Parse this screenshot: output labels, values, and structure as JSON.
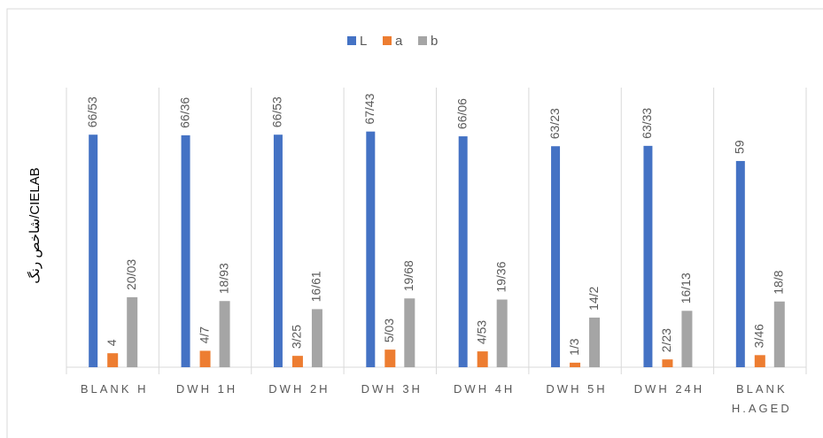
{
  "chart_data": {
    "type": "bar",
    "y_label": "شاخص رنگ/CIELAB",
    "categories": [
      "BLANK H",
      "DWH 1H",
      "DWH 2H",
      "DWH 3H",
      "DWH 4H",
      "DWH 5H",
      "DWH 24H",
      "BLANK H.AGED"
    ],
    "series": [
      {
        "name": "L",
        "color": "#4472c4",
        "values": [
          66.53,
          66.36,
          66.53,
          67.43,
          66.06,
          63.23,
          63.33,
          59
        ],
        "value_labels": [
          "66/53",
          "66/36",
          "66/53",
          "67/43",
          "66/06",
          "63/23",
          "63/33",
          "59"
        ]
      },
      {
        "name": "a",
        "color": "#ed7d31",
        "values": [
          4,
          4.7,
          3.25,
          5.03,
          4.53,
          1.3,
          2.23,
          3.46
        ],
        "value_labels": [
          "4",
          "4/7",
          "3/25",
          "5/03",
          "4/53",
          "1/3",
          "2/23",
          "3/46"
        ]
      },
      {
        "name": "b",
        "color": "#a5a5a5",
        "values": [
          20.03,
          18.93,
          16.61,
          19.68,
          19.36,
          14.2,
          16.13,
          18.8
        ],
        "value_labels": [
          "20/03",
          "18/93",
          "16/61",
          "19/68",
          "19/36",
          "14/2",
          "16/13",
          "18/8"
        ]
      }
    ],
    "ylim": [
      0,
      80
    ],
    "legend": "top"
  }
}
